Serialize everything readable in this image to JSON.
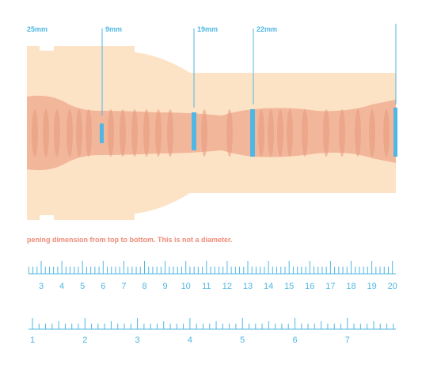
{
  "dimension_labels": {
    "first": "25mm",
    "second": "9mm",
    "third": "19mm",
    "fourth": "22mm"
  },
  "note": "pening dimension from top to bottom. This is not a diameter.",
  "ruler_cm": {
    "numbers": [
      "3",
      "4",
      "5",
      "6",
      "7",
      "8",
      "9",
      "10",
      "11",
      "12",
      "13",
      "14",
      "15",
      "16",
      "17",
      "18",
      "19",
      "20"
    ]
  },
  "ruler_in": {
    "numbers": [
      "1",
      "2",
      "3",
      "4",
      "5",
      "6",
      "7"
    ]
  },
  "colors": {
    "body": "#fde3c6",
    "channel": "#f2b79b",
    "channel_dark": "#e79a7e",
    "accent_blue": "#4fb7e3",
    "note_red": "#f08a77"
  }
}
